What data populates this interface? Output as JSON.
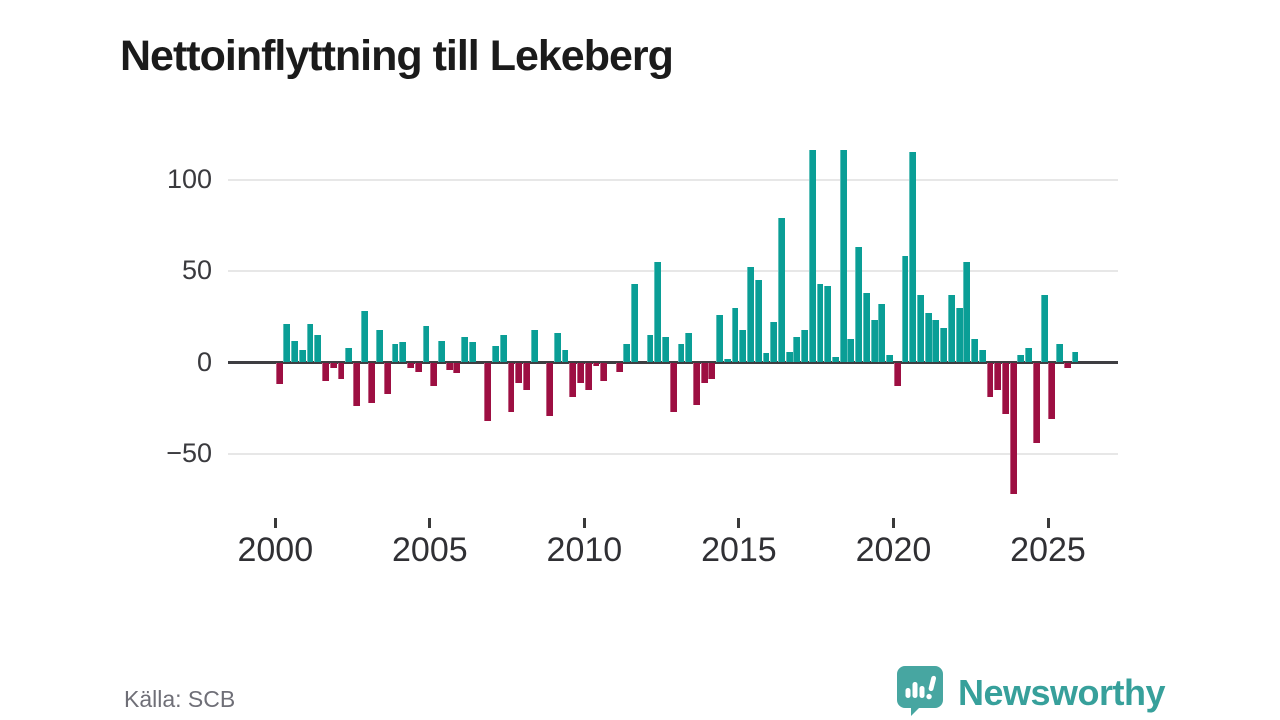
{
  "page": {
    "title": "Nettoinflyttning till Lekeberg"
  },
  "footer": {
    "source": "Källa: SCB",
    "brand": "Newsworthy"
  },
  "colors": {
    "positive_bar": "#0a9e96",
    "negative_bar": "#9d0f42",
    "zero_axis": "#3e3e42",
    "gridline": "#e7e7e7",
    "brand_teal": "#47a6a1",
    "title_text": "#1b1b1b",
    "source_text": "#6f6f77"
  },
  "chart_data": {
    "type": "bar",
    "title": "Nettoinflyttning till Lekeberg",
    "xlabel": "",
    "ylabel": "",
    "x_unit": "quarter",
    "range": "2000 Q1 – 2025 Q4",
    "grid": "horizontal",
    "legend": "none",
    "ylim": [
      -80,
      125
    ],
    "y_ticks": [
      100,
      50,
      0,
      -50
    ],
    "y_tick_labels": [
      "100",
      "50",
      "0",
      "−50"
    ],
    "x_tick_years": [
      2000,
      2005,
      2010,
      2015,
      2020,
      2025
    ],
    "x_tick_labels": [
      "2000",
      "2005",
      "2010",
      "2015",
      "2020",
      "2025"
    ],
    "series_by_year": [
      {
        "year": 2000,
        "q": [
          -12,
          21,
          12,
          7
        ]
      },
      {
        "year": 2001,
        "q": [
          21,
          15,
          -10,
          -3
        ]
      },
      {
        "year": 2002,
        "q": [
          -9,
          8,
          -24,
          28
        ]
      },
      {
        "year": 2003,
        "q": [
          -22,
          18,
          -17,
          10
        ]
      },
      {
        "year": 2004,
        "q": [
          11,
          -3,
          -5,
          20
        ]
      },
      {
        "year": 2005,
        "q": [
          -13,
          12,
          -4,
          -6
        ]
      },
      {
        "year": 2006,
        "q": [
          14,
          11,
          0,
          -32
        ]
      },
      {
        "year": 2007,
        "q": [
          9,
          15,
          -27,
          -11
        ]
      },
      {
        "year": 2008,
        "q": [
          -15,
          18,
          0,
          -29
        ]
      },
      {
        "year": 2009,
        "q": [
          16,
          7,
          -19,
          -11
        ]
      },
      {
        "year": 2010,
        "q": [
          -15,
          -2,
          -10,
          0
        ]
      },
      {
        "year": 2011,
        "q": [
          -5,
          10,
          43,
          0
        ]
      },
      {
        "year": 2012,
        "q": [
          15,
          55,
          14,
          -27
        ]
      },
      {
        "year": 2013,
        "q": [
          10,
          16,
          -23,
          -11
        ]
      },
      {
        "year": 2014,
        "q": [
          -9,
          26,
          2,
          30
        ]
      },
      {
        "year": 2015,
        "q": [
          18,
          52,
          45,
          5
        ]
      },
      {
        "year": 2016,
        "q": [
          22,
          79,
          6,
          14
        ]
      },
      {
        "year": 2017,
        "q": [
          18,
          116,
          43,
          42
        ]
      },
      {
        "year": 2018,
        "q": [
          3,
          116,
          13,
          63
        ]
      },
      {
        "year": 2019,
        "q": [
          38,
          23,
          32,
          4
        ]
      },
      {
        "year": 2020,
        "q": [
          -13,
          58,
          115,
          37
        ]
      },
      {
        "year": 2021,
        "q": [
          27,
          23,
          19,
          37
        ]
      },
      {
        "year": 2022,
        "q": [
          30,
          55,
          13,
          7
        ]
      },
      {
        "year": 2023,
        "q": [
          -19,
          -15,
          -28,
          -72
        ]
      },
      {
        "year": 2024,
        "q": [
          4,
          8,
          -44,
          37
        ]
      },
      {
        "year": 2025,
        "q": [
          -31,
          10,
          -3,
          6
        ]
      }
    ]
  }
}
